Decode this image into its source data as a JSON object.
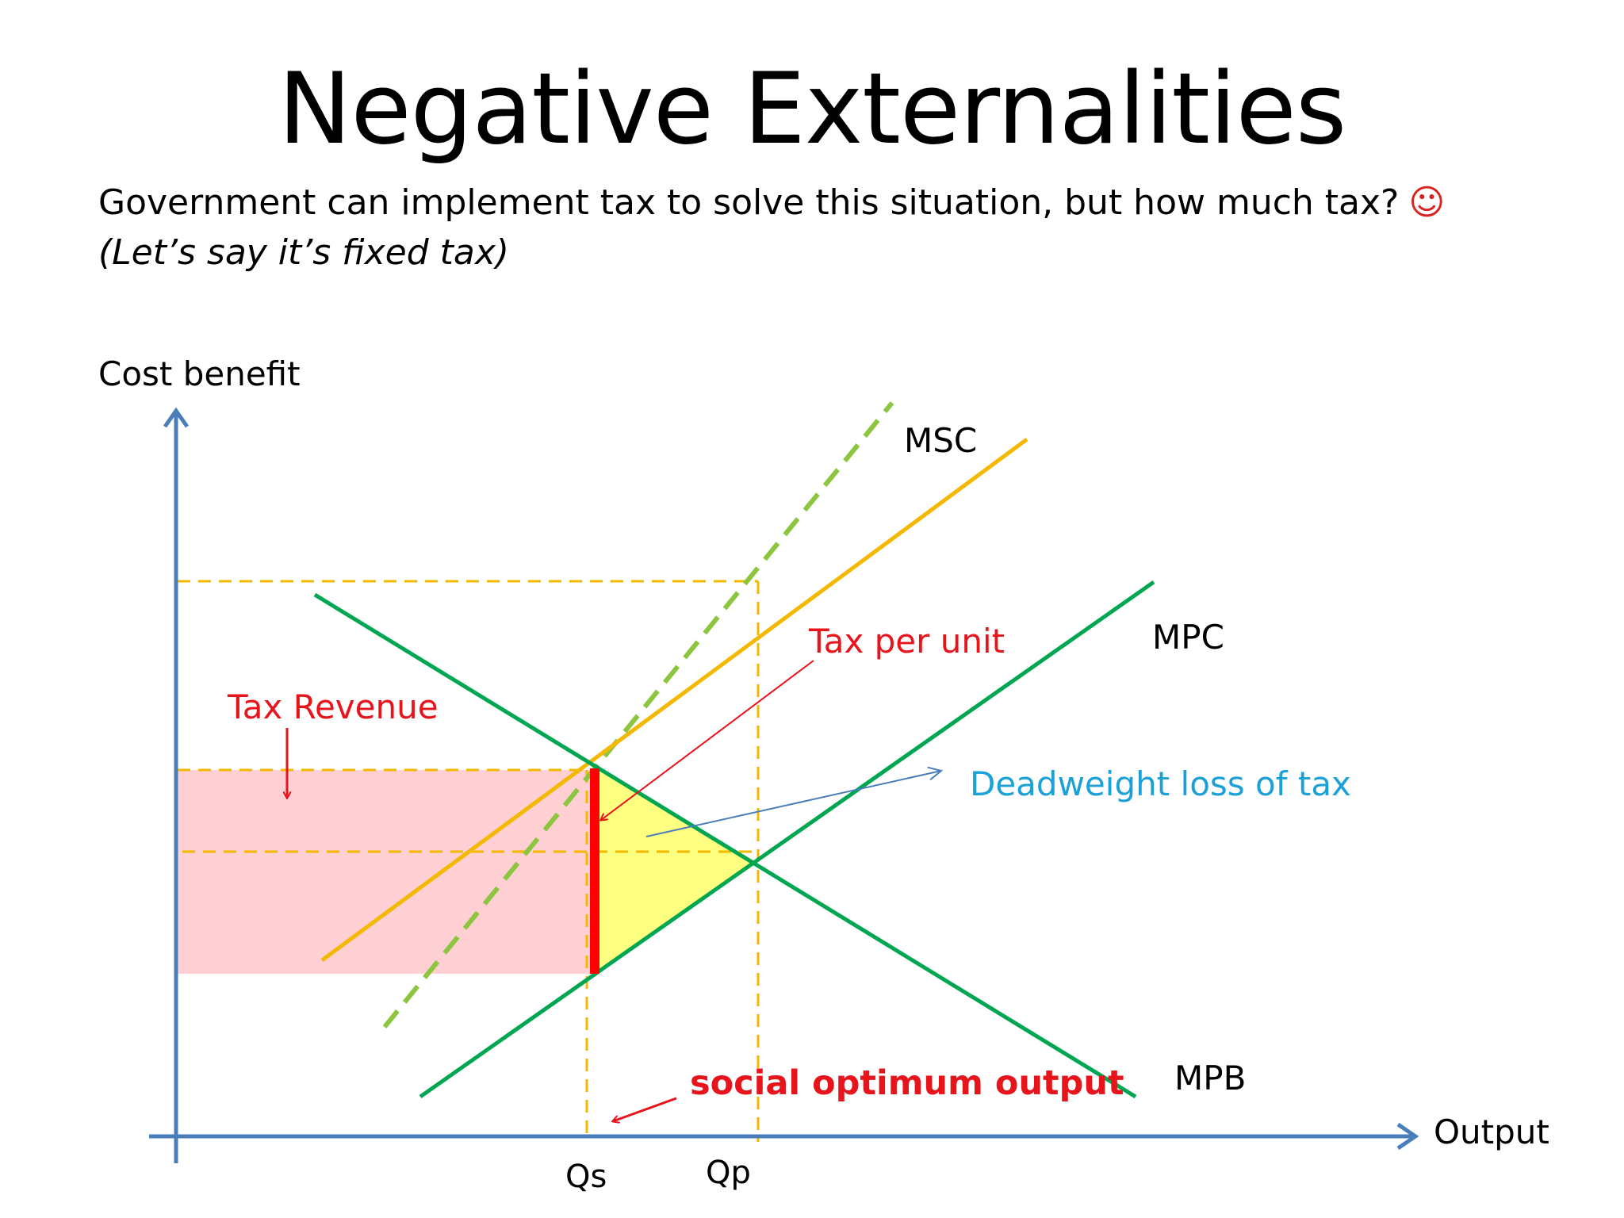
{
  "slide": {
    "title": "Negative Externalities",
    "subtitle": "Government can implement tax to solve this situation, but how much tax?",
    "subtitle_emoji": "☺",
    "subtitle_note": "(Let’s say it’s fixed tax)"
  },
  "diagram": {
    "y_axis_label": "Cost benefit",
    "x_axis_label": "Output",
    "curves": {
      "msc": "MSC",
      "mpc": "MPC",
      "mpb": "MPB"
    },
    "ticks": {
      "qs": "Qs",
      "qp": "Qp"
    },
    "annotations": {
      "tax_revenue": "Tax Revenue",
      "tax_per_unit": "Tax per unit",
      "deadweight_loss": "Deadweight loss of tax",
      "social_optimum": "social optimum output"
    },
    "colors": {
      "axis": "#4a7ebb",
      "demand_supply": "#00a651",
      "taxed_supply": "#f4b800",
      "msc_dashed": "#8cc63f",
      "guides": "#f4b800",
      "tax_revenue_fill": "#ffd0d3",
      "deadweight_fill": "#ffff80",
      "tax_bar": "#ff0000",
      "red_text": "#e8141b",
      "blue_text": "#1ba0d7"
    }
  }
}
